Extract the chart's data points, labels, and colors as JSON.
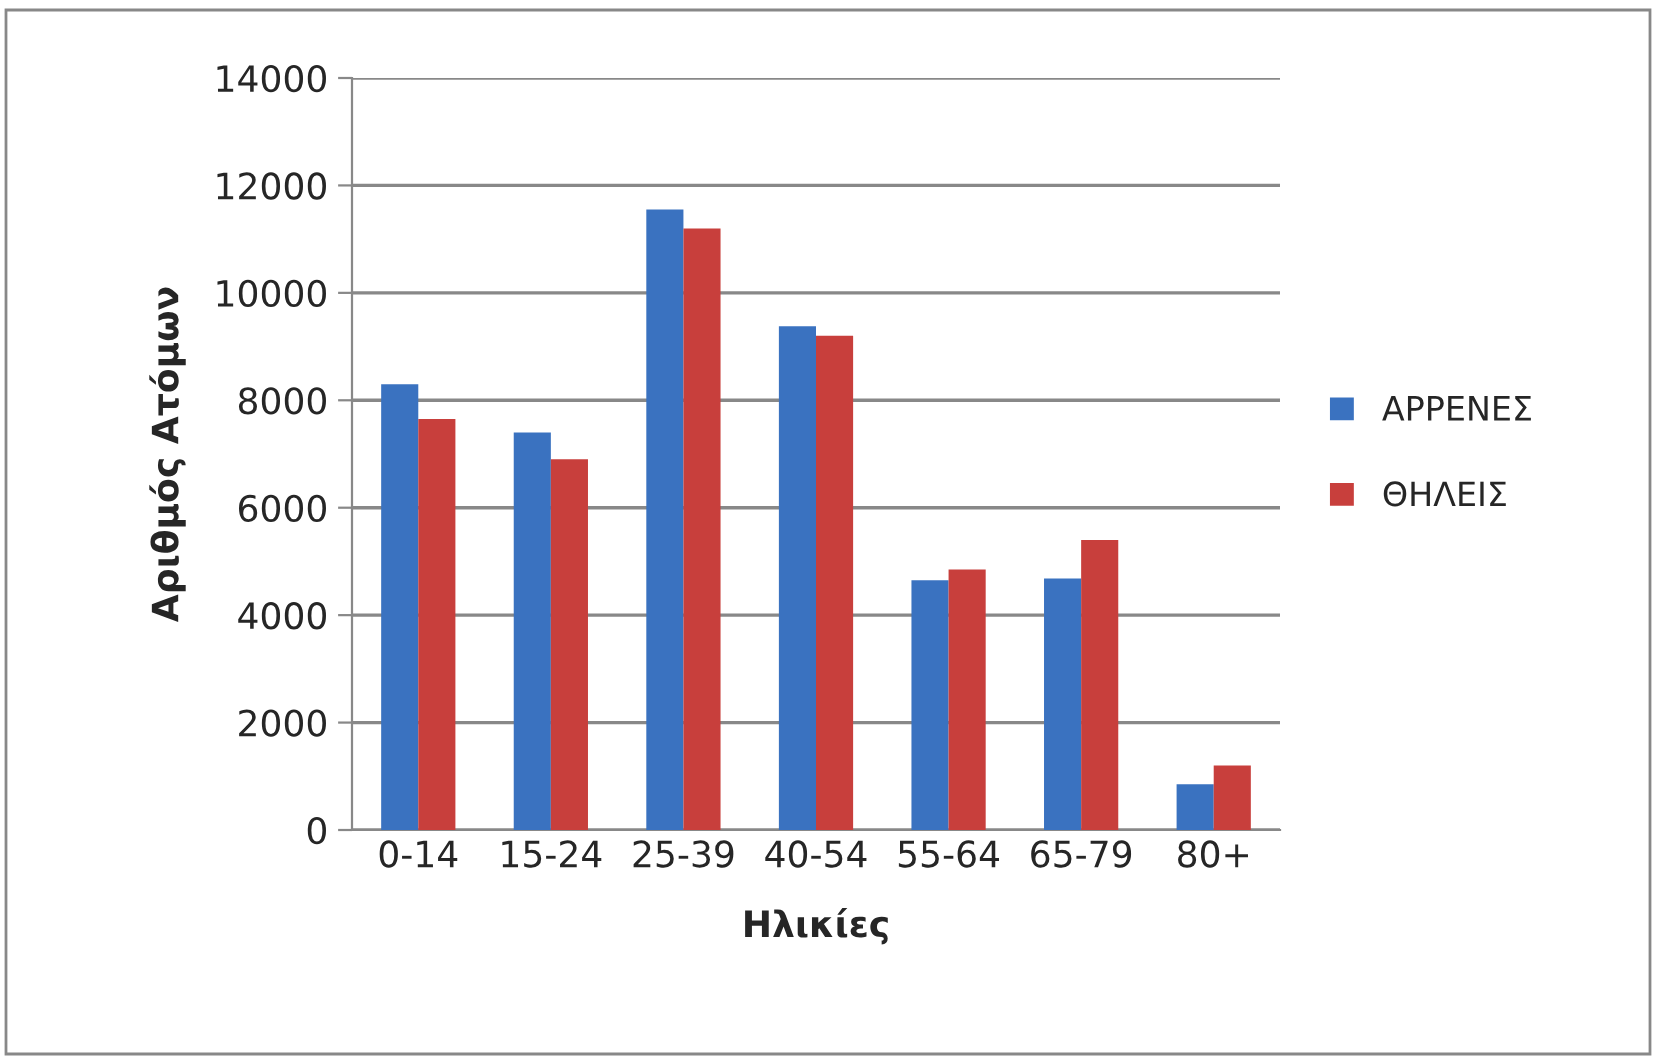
{
  "chart_data": {
    "type": "bar",
    "xlabel": "Ηλικίες",
    "ylabel": "Αριθμός Ατόμων",
    "categories": [
      "0-14",
      "15-24",
      "25-39",
      "40-54",
      "55-64",
      "65-79",
      "80+"
    ],
    "series": [
      {
        "name": "ΑΡΡΕΝΕΣ",
        "color": "#3a72c0",
        "values": [
          8300,
          7400,
          11550,
          9380,
          4650,
          4680,
          850
        ]
      },
      {
        "name": "ΘΗΛΕΙΣ",
        "color": "#c83f3c",
        "values": [
          7650,
          6900,
          11200,
          9200,
          4850,
          5400,
          1200
        ]
      }
    ],
    "ylim": [
      0,
      14000
    ],
    "yticks": [
      0,
      2000,
      4000,
      6000,
      8000,
      10000,
      12000,
      14000
    ],
    "grid": "y",
    "legend": "right"
  }
}
